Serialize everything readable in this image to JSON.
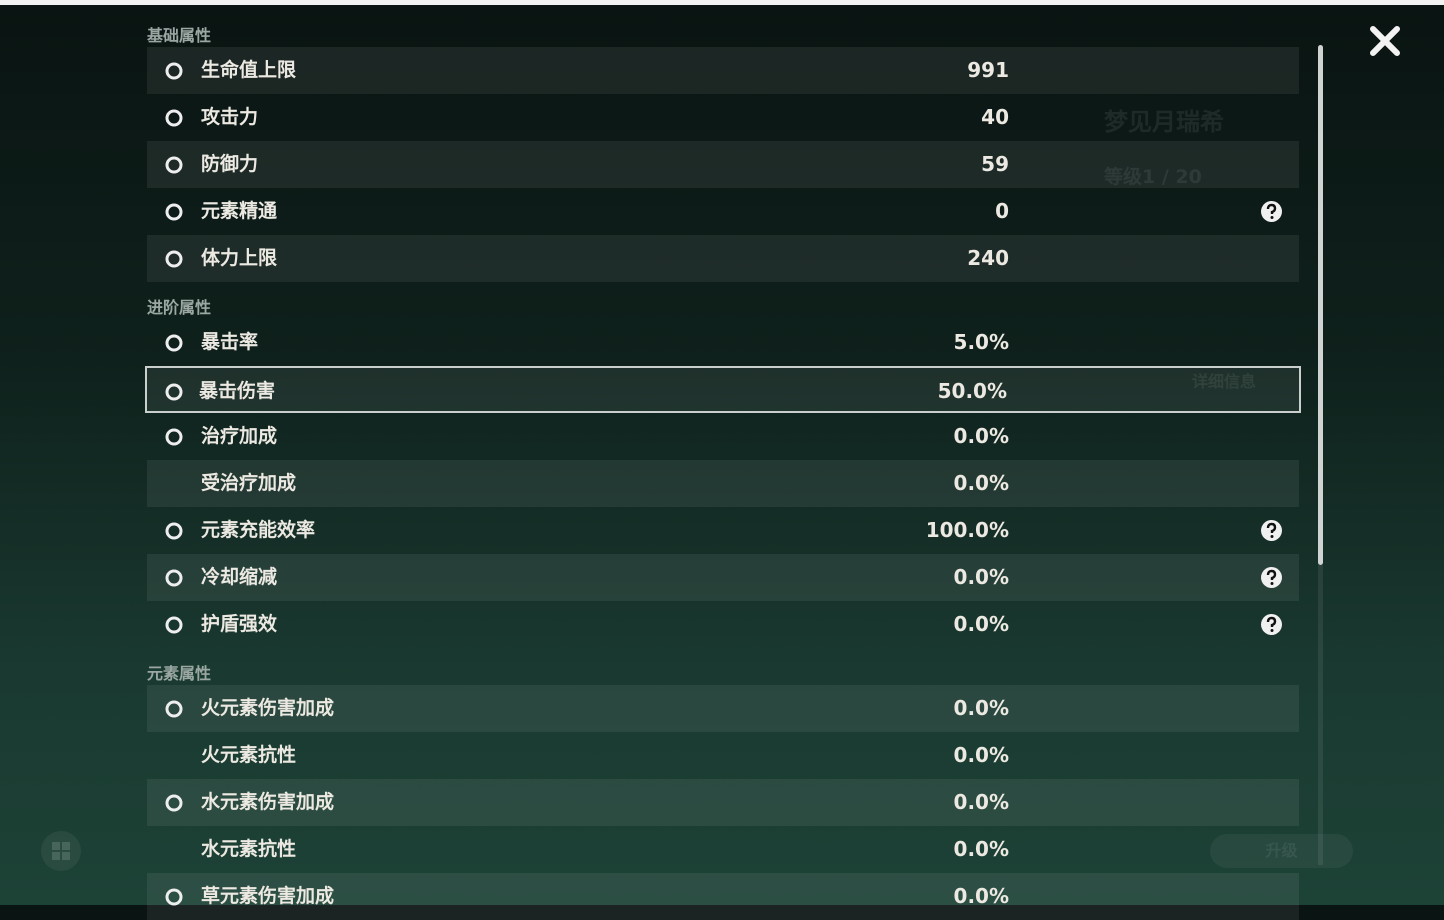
{
  "sections": [
    {
      "title": "基础属性",
      "rows": [
        {
          "label": "生命值上限",
          "value": "991"
        },
        {
          "label": "攻击力",
          "value": "40"
        },
        {
          "label": "防御力",
          "value": "59"
        },
        {
          "label": "元素精通",
          "value": "0",
          "help": true
        },
        {
          "label": "体力上限",
          "value": "240"
        }
      ]
    },
    {
      "title": "进阶属性",
      "rows": [
        {
          "label": "暴击率",
          "value": "5.0%"
        },
        {
          "label": "暴击伤害",
          "value": "50.0%",
          "selected": true
        },
        {
          "label": "治疗加成",
          "value": "0.0%"
        },
        {
          "label": "受治疗加成",
          "value": "0.0%"
        },
        {
          "label": "元素充能效率",
          "value": "100.0%",
          "help": true
        },
        {
          "label": "冷却缩减",
          "value": "0.0%",
          "help": true
        },
        {
          "label": "护盾强效",
          "value": "0.0%",
          "help": true
        }
      ]
    },
    {
      "title": "元素属性",
      "rows": [
        {
          "label": "火元素伤害加成",
          "value": "0.0%"
        },
        {
          "label": "火元素抗性",
          "value": "0.0%"
        },
        {
          "label": "水元素伤害加成",
          "value": "0.0%"
        },
        {
          "label": "水元素抗性",
          "value": "0.0%"
        },
        {
          "label": "草元素伤害加成",
          "value": "0.0%"
        }
      ]
    }
  ],
  "side_panel": {
    "name": "梦见月瑞希",
    "level": "等级1 / 20",
    "details": "详细信息",
    "upgrade": "升级"
  }
}
